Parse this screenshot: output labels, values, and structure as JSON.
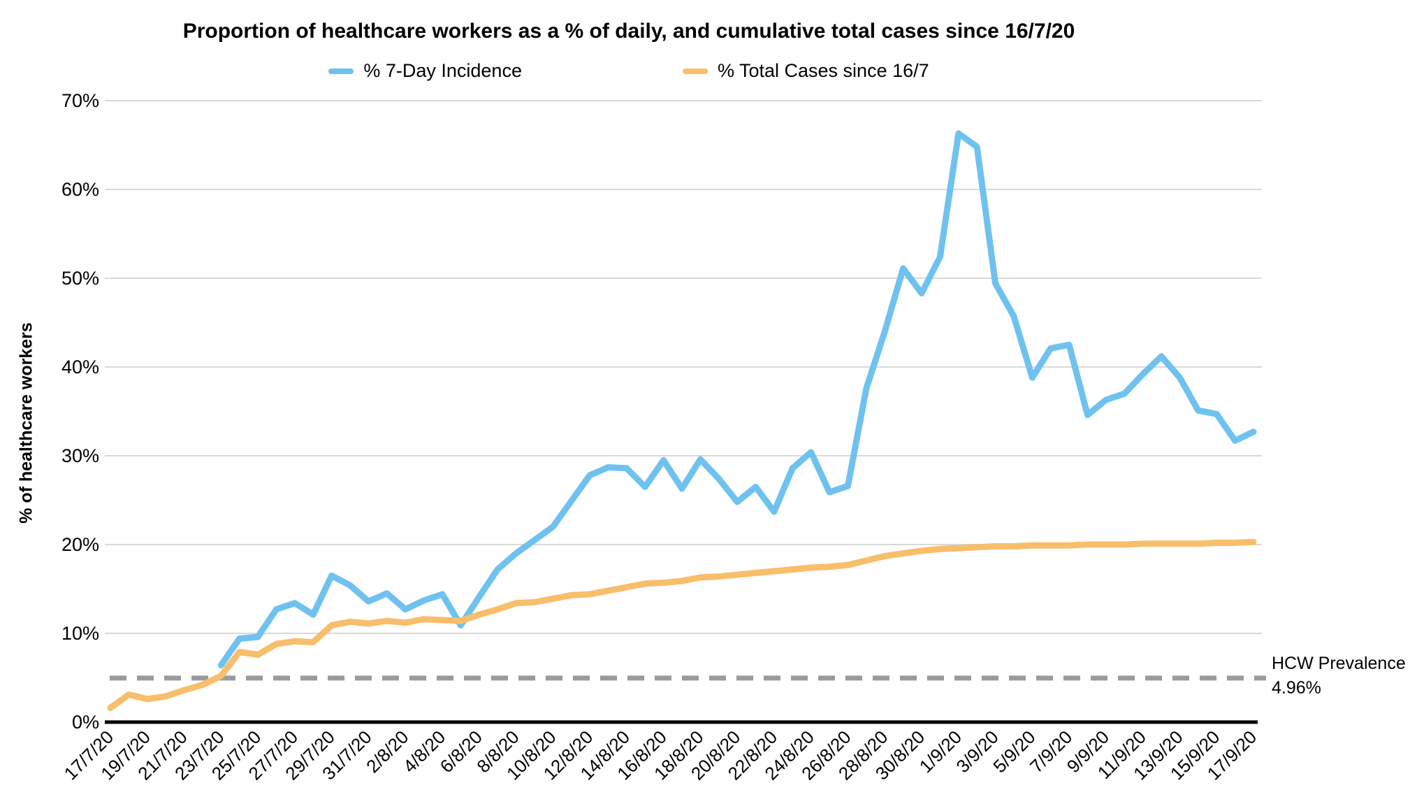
{
  "title": "Proportion of healthcare workers as a % of daily, and cumulative total cases since 16/7/20",
  "legend": [
    {
      "label": "% 7-Day Incidence",
      "color": "#6FC2EF"
    },
    {
      "label": "% Total Cases since 16/7",
      "color": "#F8BE6B"
    }
  ],
  "y_axis": {
    "label": "% of healthcare workers",
    "tick_labels": [
      "0%",
      "10%",
      "20%",
      "30%",
      "40%",
      "50%",
      "60%",
      "70%"
    ]
  },
  "annotation": {
    "line1": "HCW Prevalence",
    "line2": "4.96%"
  },
  "colors": {
    "incidence_line": "#6FC2EF",
    "total_cases_line": "#F8BE6B",
    "prevalence_line": "#9A9A9A",
    "gridline": "#D9D9D9",
    "axis_line": "#000000"
  },
  "chart_data": {
    "type": "line",
    "title": "Proportion of healthcare workers as a % of daily, and cumulative total cases since 16/7/20",
    "ylabel": "% of healthcare workers",
    "ylim": [
      0,
      70
    ],
    "y_tick_step": 10,
    "grid": "horizontal",
    "legend_position": "top-center",
    "x_tick_label_every": 2,
    "categories": [
      "17/7/20",
      "18/7/20",
      "19/7/20",
      "20/7/20",
      "21/7/20",
      "22/7/20",
      "23/7/20",
      "24/7/20",
      "25/7/20",
      "26/7/20",
      "27/7/20",
      "28/7/20",
      "29/7/20",
      "30/7/20",
      "31/7/20",
      "1/8/20",
      "2/8/20",
      "3/8/20",
      "4/8/20",
      "5/8/20",
      "6/8/20",
      "7/8/20",
      "8/8/20",
      "9/8/20",
      "10/8/20",
      "11/8/20",
      "12/8/20",
      "13/8/20",
      "14/8/20",
      "15/8/20",
      "16/8/20",
      "17/8/20",
      "18/8/20",
      "19/8/20",
      "20/8/20",
      "21/8/20",
      "22/8/20",
      "23/8/20",
      "24/8/20",
      "25/8/20",
      "26/8/20",
      "27/8/20",
      "28/8/20",
      "29/8/20",
      "30/8/20",
      "31/8/20",
      "1/9/20",
      "2/9/20",
      "3/9/20",
      "4/9/20",
      "5/9/20",
      "6/9/20",
      "7/9/20",
      "8/9/20",
      "9/9/20",
      "10/9/20",
      "11/9/20",
      "12/9/20",
      "13/9/20",
      "14/9/20",
      "15/9/20",
      "16/9/20",
      "17/9/20"
    ],
    "series": [
      {
        "name": "% 7-Day Incidence",
        "color": "#6FC2EF",
        "values": [
          null,
          null,
          null,
          null,
          null,
          null,
          6.4,
          9.4,
          9.6,
          12.7,
          13.4,
          12.1,
          16.5,
          15.4,
          13.6,
          14.5,
          12.7,
          13.7,
          14.4,
          10.9,
          14.1,
          17.2,
          19.0,
          20.5,
          22.0,
          24.9,
          27.8,
          28.7,
          28.6,
          26.5,
          29.5,
          26.3,
          29.6,
          27.4,
          24.8,
          26.5,
          23.7,
          28.6,
          30.4,
          25.9,
          26.6,
          37.6,
          44.0,
          51.1,
          48.3,
          52.4,
          66.3,
          64.8,
          49.4,
          45.7,
          38.8,
          42.1,
          42.5,
          34.6,
          36.3,
          37.0,
          39.2,
          41.2,
          38.8,
          35.1,
          34.7,
          31.7,
          32.7
        ]
      },
      {
        "name": "% Total Cases since 16/7",
        "color": "#F8BE6B",
        "values": [
          1.6,
          3.1,
          2.6,
          2.9,
          3.6,
          4.2,
          5.2,
          7.9,
          7.6,
          8.8,
          9.1,
          9.0,
          10.9,
          11.3,
          11.1,
          11.4,
          11.2,
          11.6,
          11.5,
          11.4,
          12.1,
          12.7,
          13.4,
          13.5,
          13.9,
          14.3,
          14.4,
          14.8,
          15.2,
          15.6,
          15.7,
          15.9,
          16.3,
          16.4,
          16.6,
          16.8,
          17.0,
          17.2,
          17.4,
          17.5,
          17.7,
          18.2,
          18.7,
          19.0,
          19.3,
          19.5,
          19.6,
          19.7,
          19.8,
          19.8,
          19.9,
          19.9,
          19.9,
          20.0,
          20.0,
          20.0,
          20.1,
          20.1,
          20.1,
          20.1,
          20.2,
          20.2,
          20.3
        ]
      }
    ],
    "reference_line": {
      "label": "HCW Prevalence",
      "value": 4.96,
      "value_label": "4.96%",
      "style": "dashed",
      "color": "#9A9A9A"
    }
  }
}
